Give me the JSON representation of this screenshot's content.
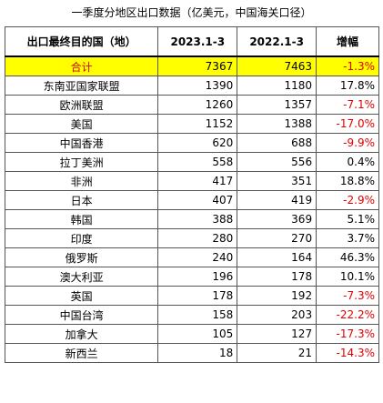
{
  "title": "一季度分地区出口数据（亿美元，中国海关口径）",
  "table": {
    "header": [
      "出口最终目的国（地）",
      "2023.1-3",
      "2022.1-3",
      "增幅"
    ],
    "rows": [
      [
        "合计",
        7367,
        7463,
        "-1.3%"
      ],
      [
        "东南亚国家联盟",
        1390,
        1180,
        "17.8%"
      ],
      [
        "欧洲联盟",
        1260,
        1357,
        "-7.1%"
      ],
      [
        "美国",
        1152,
        1388,
        "-17.0%"
      ],
      [
        "中国香港",
        620,
        688,
        "-9.9%"
      ],
      [
        "拉丁美洲",
        558,
        556,
        "0.4%"
      ],
      [
        "非洲",
        417,
        351,
        "18.8%"
      ],
      [
        "日本",
        407,
        419,
        "-2.9%"
      ],
      [
        "韩国",
        388,
        369,
        "5.1%"
      ],
      [
        "印度",
        280,
        270,
        "3.7%"
      ],
      [
        "俄罗斯",
        240,
        164,
        "46.3%"
      ],
      [
        "澳大利亚",
        196,
        178,
        "10.1%"
      ],
      [
        "英国",
        178,
        192,
        "-7.3%"
      ],
      [
        "中国台湾",
        158,
        203,
        "-22.2%"
      ],
      [
        "加拿大",
        105,
        127,
        "-17.3%"
      ],
      [
        "新西兰",
        18,
        21,
        "-14.3%"
      ]
    ],
    "highlight_row": 0,
    "highlight_color": "#ffff00",
    "negative_color": "#e00000"
  }
}
